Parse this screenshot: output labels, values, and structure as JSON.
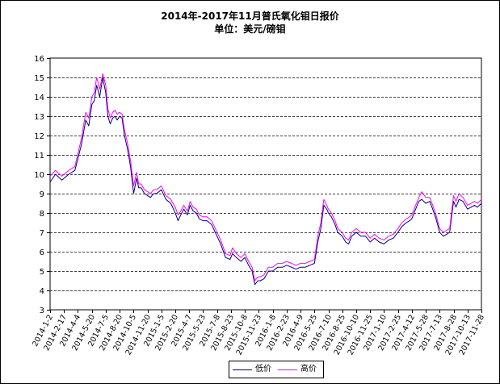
{
  "title": {
    "line1": "2014年-2017年11月普氏氧化钼日报价",
    "line2": "单位：美元/磅钼"
  },
  "legend": {
    "low": {
      "label": "低价",
      "color": "#000080"
    },
    "high": {
      "label": "高价",
      "color": "#ff00ff"
    }
  },
  "chart_data": {
    "type": "line",
    "title": "2014年-2017年11月普氏氧化钼日报价",
    "subtitle": "单位：美元/磅钼",
    "ylim": [
      3,
      16
    ],
    "yticks": [
      3,
      4,
      5,
      6,
      7,
      8,
      9,
      10,
      11,
      12,
      13,
      14,
      15,
      16
    ],
    "grid": "horizontal dashed",
    "legend_position": "bottom-center",
    "x_tick_labels": [
      "2014-1-2",
      "2014-2-17",
      "2014-4-4",
      "2014-5-20",
      "2014-7-5",
      "2014-8-20",
      "2014-10-5",
      "2014-11-20",
      "2015-1-5",
      "2015-2-20",
      "2015-4-7",
      "2015-5-23",
      "2015-7-8",
      "2015-8-23",
      "2015-10-8",
      "2015-11-23",
      "2016-1-8",
      "2016-2-23",
      "2016-4-9",
      "2016-5-25",
      "2016-7-10",
      "2016-8-25",
      "2016-10-10",
      "2016-11-25",
      "2017-1-10",
      "2017-2-25",
      "2017-4-12",
      "2017-5-28",
      "2017-7-13",
      "2017-8-28",
      "2017-10-13",
      "2017-11-28"
    ],
    "x": [
      "2014-01-02",
      "2014-01-20",
      "2014-02-10",
      "2014-03-05",
      "2014-03-25",
      "2014-04-15",
      "2014-04-30",
      "2014-05-10",
      "2014-05-20",
      "2014-05-28",
      "2014-06-05",
      "2014-06-15",
      "2014-06-25",
      "2014-07-05",
      "2014-07-12",
      "2014-07-20",
      "2014-07-28",
      "2014-08-05",
      "2014-08-12",
      "2014-08-20",
      "2014-08-28",
      "2014-09-05",
      "2014-09-15",
      "2014-09-25",
      "2014-10-05",
      "2014-10-15",
      "2014-10-22",
      "2014-10-30",
      "2014-11-10",
      "2014-11-20",
      "2014-11-30",
      "2014-12-10",
      "2014-12-20",
      "2015-01-05",
      "2015-01-20",
      "2015-02-05",
      "2015-02-20",
      "2015-03-01",
      "2015-03-10",
      "2015-03-20",
      "2015-04-01",
      "2015-04-10",
      "2015-04-20",
      "2015-05-01",
      "2015-05-10",
      "2015-05-23",
      "2015-06-05",
      "2015-06-20",
      "2015-07-05",
      "2015-07-20",
      "2015-08-05",
      "2015-08-20",
      "2015-08-28",
      "2015-09-10",
      "2015-09-25",
      "2015-10-08",
      "2015-10-20",
      "2015-11-01",
      "2015-11-10",
      "2015-11-20",
      "2015-11-28",
      "2015-12-10",
      "2015-12-25",
      "2016-01-08",
      "2016-01-25",
      "2016-02-10",
      "2016-02-23",
      "2016-03-10",
      "2016-03-25",
      "2016-04-09",
      "2016-04-25",
      "2016-05-10",
      "2016-05-25",
      "2016-06-05",
      "2016-06-15",
      "2016-06-25",
      "2016-07-05",
      "2016-07-10",
      "2016-07-20",
      "2016-08-01",
      "2016-08-10",
      "2016-08-25",
      "2016-09-05",
      "2016-09-15",
      "2016-09-25",
      "2016-10-10",
      "2016-10-25",
      "2016-11-10",
      "2016-11-25",
      "2016-12-10",
      "2016-12-25",
      "2017-01-10",
      "2017-01-25",
      "2017-02-10",
      "2017-02-25",
      "2017-03-10",
      "2017-03-25",
      "2017-04-05",
      "2017-04-12",
      "2017-04-22",
      "2017-05-05",
      "2017-05-15",
      "2017-05-28",
      "2017-06-10",
      "2017-06-20",
      "2017-07-01",
      "2017-07-13",
      "2017-07-25",
      "2017-08-05",
      "2017-08-15",
      "2017-08-28",
      "2017-09-05",
      "2017-09-15",
      "2017-09-28",
      "2017-10-13",
      "2017-10-25",
      "2017-11-05",
      "2017-11-15",
      "2017-11-28"
    ],
    "series": [
      {
        "name": "低价",
        "values": [
          9.6,
          10.0,
          9.7,
          10.0,
          10.2,
          11.5,
          12.8,
          12.5,
          13.6,
          13.8,
          14.6,
          14.0,
          15.0,
          14.2,
          13.0,
          12.6,
          12.9,
          13.0,
          12.8,
          13.0,
          12.9,
          12.0,
          11.3,
          10.4,
          9.0,
          9.8,
          9.3,
          9.3,
          9.0,
          8.9,
          8.8,
          9.0,
          9.0,
          9.2,
          8.7,
          8.5,
          8.0,
          7.6,
          7.9,
          8.2,
          7.9,
          8.4,
          8.1,
          8.0,
          7.7,
          7.6,
          7.6,
          7.4,
          6.9,
          6.4,
          5.7,
          5.6,
          5.9,
          5.7,
          5.5,
          5.7,
          5.3,
          5.0,
          4.3,
          4.5,
          4.5,
          4.6,
          5.0,
          5.0,
          5.2,
          5.2,
          5.3,
          5.2,
          5.1,
          5.2,
          5.2,
          5.3,
          5.4,
          6.5,
          7.2,
          8.4,
          8.2,
          8.0,
          7.8,
          7.4,
          7.0,
          6.8,
          6.5,
          6.4,
          6.8,
          7.0,
          6.8,
          6.8,
          6.5,
          6.7,
          6.5,
          6.4,
          6.6,
          6.7,
          7.0,
          7.3,
          7.5,
          7.6,
          7.7,
          8.1,
          8.6,
          8.7,
          8.5,
          8.6,
          8.2,
          7.7,
          7.0,
          6.8,
          6.9,
          7.0,
          8.6,
          8.3,
          8.7,
          8.6,
          8.2,
          8.3,
          8.4,
          8.3,
          8.5
        ]
      },
      {
        "name": "高价",
        "values": [
          9.9,
          10.2,
          9.9,
          10.2,
          10.4,
          11.8,
          13.2,
          12.9,
          14.0,
          14.2,
          15.0,
          14.4,
          15.2,
          14.6,
          13.4,
          12.9,
          13.2,
          13.3,
          13.1,
          13.2,
          13.1,
          12.3,
          11.6,
          10.7,
          9.4,
          10.1,
          9.5,
          9.5,
          9.2,
          9.1,
          9.0,
          9.2,
          9.2,
          9.4,
          8.9,
          8.7,
          8.3,
          7.9,
          8.1,
          8.4,
          8.1,
          8.6,
          8.3,
          8.2,
          7.9,
          7.8,
          7.8,
          7.6,
          7.1,
          6.6,
          5.9,
          5.8,
          6.2,
          5.9,
          5.7,
          5.9,
          5.5,
          5.2,
          4.5,
          4.7,
          4.7,
          4.8,
          5.2,
          5.2,
          5.4,
          5.4,
          5.5,
          5.4,
          5.3,
          5.4,
          5.4,
          5.5,
          5.6,
          6.8,
          7.5,
          8.7,
          8.4,
          8.2,
          8.0,
          7.6,
          7.2,
          7.0,
          6.7,
          6.6,
          7.0,
          7.2,
          7.0,
          7.0,
          6.7,
          6.9,
          6.7,
          6.6,
          6.8,
          6.9,
          7.2,
          7.5,
          7.7,
          7.8,
          7.9,
          8.3,
          8.8,
          9.1,
          8.8,
          8.8,
          8.4,
          7.9,
          7.2,
          7.0,
          7.1,
          7.2,
          8.9,
          8.6,
          9.0,
          8.8,
          8.4,
          8.5,
          8.6,
          8.5,
          8.7
        ]
      }
    ]
  }
}
